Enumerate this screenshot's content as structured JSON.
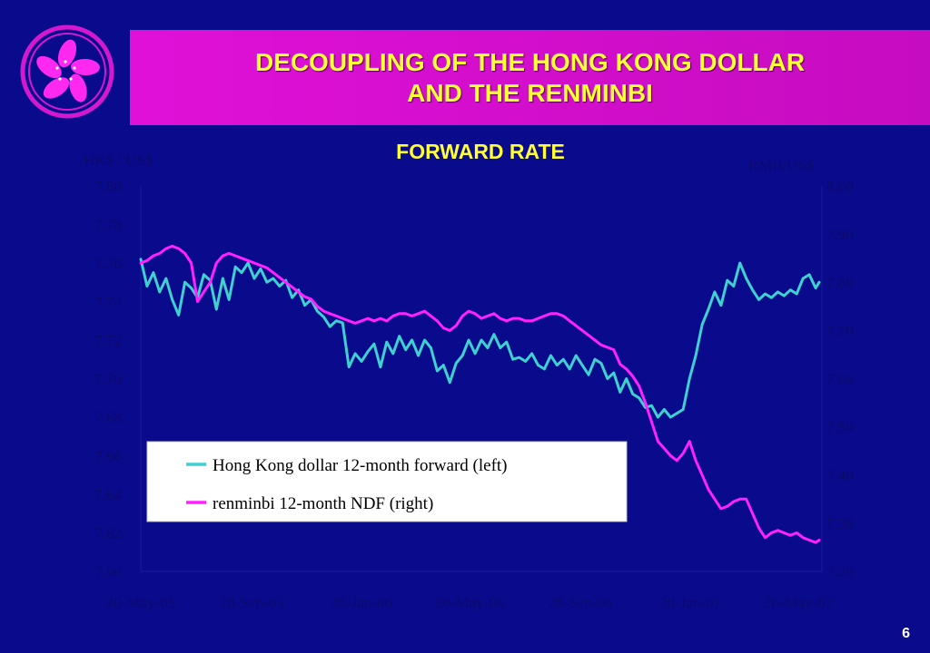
{
  "slide": {
    "title_line1": "DECOUPLING OF THE HONG KONG DOLLAR",
    "title_line2": "AND THE RENMINBI",
    "page_number": "6"
  },
  "colors": {
    "background": "#0a0a8c",
    "title_bar": "#d60ed0",
    "title_text": "#ffff33",
    "subtitle_text": "#ffff33",
    "hkd_series": "#3fd0d0",
    "rmb_series": "#ff22ff",
    "axis_text": "#0b0b6a",
    "grid_line": "#1a1aa0"
  },
  "chart_data": {
    "type": "line",
    "title": "FORWARD RATE",
    "ylabel_left": "HK$ / US$",
    "ylabel_right": "RMB/US$",
    "ylim_left": [
      7.6,
      7.8
    ],
    "ylim_right": [
      7.2,
      8.0
    ],
    "yticks_left": [
      "7.80",
      "7.78",
      "7.76",
      "7.74",
      "7.72",
      "7.70",
      "7.68",
      "7.66",
      "7.64",
      "7.62",
      "7.60"
    ],
    "yticks_right": [
      "8.00",
      "7.90",
      "7.80",
      "7.70",
      "7.60",
      "7.50",
      "7.40",
      "7.30",
      "7.20"
    ],
    "x_range": [
      "2005-05-20",
      "2007-06-15"
    ],
    "xticks": [
      {
        "date": "2005-05-20",
        "label": "20-May-05"
      },
      {
        "date": "2005-09-20",
        "label": "20-Sep-05"
      },
      {
        "date": "2006-01-20",
        "label": "20-Jan-06"
      },
      {
        "date": "2006-05-20",
        "label": "20-May-06"
      },
      {
        "date": "2006-09-20",
        "label": "20-Sep-06"
      },
      {
        "date": "2007-01-20",
        "label": "20-Jan-07"
      },
      {
        "date": "2007-05-20",
        "label": "20-May-07"
      }
    ],
    "legend_position": "bottom-left",
    "series": [
      {
        "name": "Hong Kong dollar 12-month forward (left)",
        "axis": "left",
        "color": "#3fd0d0",
        "points": [
          [
            "2005-05-20",
            7.762
          ],
          [
            "2005-05-27",
            7.748
          ],
          [
            "2005-06-03",
            7.755
          ],
          [
            "2005-06-10",
            7.745
          ],
          [
            "2005-06-17",
            7.752
          ],
          [
            "2005-06-24",
            7.741
          ],
          [
            "2005-07-01",
            7.733
          ],
          [
            "2005-07-08",
            7.75
          ],
          [
            "2005-07-15",
            7.747
          ],
          [
            "2005-07-22",
            7.742
          ],
          [
            "2005-07-29",
            7.754
          ],
          [
            "2005-08-05",
            7.751
          ],
          [
            "2005-08-12",
            7.736
          ],
          [
            "2005-08-19",
            7.752
          ],
          [
            "2005-08-26",
            7.741
          ],
          [
            "2005-09-02",
            7.758
          ],
          [
            "2005-09-09",
            7.755
          ],
          [
            "2005-09-16",
            7.76
          ],
          [
            "2005-09-23",
            7.752
          ],
          [
            "2005-09-30",
            7.757
          ],
          [
            "2005-10-07",
            7.75
          ],
          [
            "2005-10-14",
            7.752
          ],
          [
            "2005-10-21",
            7.748
          ],
          [
            "2005-10-28",
            7.751
          ],
          [
            "2005-11-04",
            7.742
          ],
          [
            "2005-11-11",
            7.746
          ],
          [
            "2005-11-18",
            7.738
          ],
          [
            "2005-11-25",
            7.741
          ],
          [
            "2005-12-02",
            7.735
          ],
          [
            "2005-12-09",
            7.732
          ],
          [
            "2005-12-16",
            7.727
          ],
          [
            "2005-12-23",
            7.73
          ],
          [
            "2005-12-30",
            7.729
          ],
          [
            "2006-01-06",
            7.706
          ],
          [
            "2006-01-13",
            7.713
          ],
          [
            "2006-01-20",
            7.709
          ],
          [
            "2006-01-27",
            7.714
          ],
          [
            "2006-02-03",
            7.718
          ],
          [
            "2006-02-10",
            7.706
          ],
          [
            "2006-02-17",
            7.719
          ],
          [
            "2006-02-24",
            7.713
          ],
          [
            "2006-03-03",
            7.722
          ],
          [
            "2006-03-10",
            7.715
          ],
          [
            "2006-03-17",
            7.72
          ],
          [
            "2006-03-24",
            7.712
          ],
          [
            "2006-03-31",
            7.72
          ],
          [
            "2006-04-07",
            7.716
          ],
          [
            "2006-04-14",
            7.704
          ],
          [
            "2006-04-21",
            7.707
          ],
          [
            "2006-04-28",
            7.698
          ],
          [
            "2006-05-05",
            7.708
          ],
          [
            "2006-05-12",
            7.712
          ],
          [
            "2006-05-19",
            7.72
          ],
          [
            "2006-05-26",
            7.713
          ],
          [
            "2006-06-02",
            7.72
          ],
          [
            "2006-06-09",
            7.716
          ],
          [
            "2006-06-16",
            7.723
          ],
          [
            "2006-06-23",
            7.716
          ],
          [
            "2006-06-30",
            7.719
          ],
          [
            "2006-07-07",
            7.71
          ],
          [
            "2006-07-14",
            7.711
          ],
          [
            "2006-07-21",
            7.709
          ],
          [
            "2006-07-28",
            7.713
          ],
          [
            "2006-08-04",
            7.707
          ],
          [
            "2006-08-11",
            7.705
          ],
          [
            "2006-08-18",
            7.712
          ],
          [
            "2006-08-25",
            7.707
          ],
          [
            "2006-09-01",
            7.71
          ],
          [
            "2006-09-08",
            7.705
          ],
          [
            "2006-09-15",
            7.712
          ],
          [
            "2006-09-22",
            7.707
          ],
          [
            "2006-09-29",
            7.702
          ],
          [
            "2006-10-06",
            7.71
          ],
          [
            "2006-10-13",
            7.708
          ],
          [
            "2006-10-20",
            7.7
          ],
          [
            "2006-10-27",
            7.703
          ],
          [
            "2006-11-03",
            7.693
          ],
          [
            "2006-11-10",
            7.7
          ],
          [
            "2006-11-17",
            7.692
          ],
          [
            "2006-11-24",
            7.69
          ],
          [
            "2006-12-01",
            7.685
          ],
          [
            "2006-12-08",
            7.686
          ],
          [
            "2006-12-15",
            7.68
          ],
          [
            "2006-12-22",
            7.684
          ],
          [
            "2006-12-29",
            7.68
          ],
          [
            "2007-01-05",
            7.682
          ],
          [
            "2007-01-12",
            7.684
          ],
          [
            "2007-01-19",
            7.7
          ],
          [
            "2007-01-26",
            7.712
          ],
          [
            "2007-02-02",
            7.728
          ],
          [
            "2007-02-09",
            7.736
          ],
          [
            "2007-02-16",
            7.745
          ],
          [
            "2007-02-23",
            7.738
          ],
          [
            "2007-03-02",
            7.751
          ],
          [
            "2007-03-09",
            7.748
          ],
          [
            "2007-03-16",
            7.76
          ],
          [
            "2007-03-23",
            7.752
          ],
          [
            "2007-03-30",
            7.746
          ],
          [
            "2007-04-06",
            7.741
          ],
          [
            "2007-04-13",
            7.744
          ],
          [
            "2007-04-20",
            7.742
          ],
          [
            "2007-04-27",
            7.745
          ],
          [
            "2007-05-04",
            7.743
          ],
          [
            "2007-05-11",
            7.746
          ],
          [
            "2007-05-18",
            7.744
          ],
          [
            "2007-05-25",
            7.752
          ],
          [
            "2007-06-01",
            7.754
          ],
          [
            "2007-06-08",
            7.747
          ],
          [
            "2007-06-12",
            7.75
          ]
        ]
      },
      {
        "name": "renminbi 12-month NDF (right)",
        "axis": "right",
        "color": "#ff22ff",
        "points": [
          [
            "2005-05-20",
            7.84
          ],
          [
            "2005-05-27",
            7.845
          ],
          [
            "2005-06-03",
            7.855
          ],
          [
            "2005-06-10",
            7.86
          ],
          [
            "2005-06-17",
            7.87
          ],
          [
            "2005-06-24",
            7.875
          ],
          [
            "2005-07-01",
            7.87
          ],
          [
            "2005-07-08",
            7.86
          ],
          [
            "2005-07-15",
            7.84
          ],
          [
            "2005-07-22",
            7.76
          ],
          [
            "2005-07-29",
            7.78
          ],
          [
            "2005-08-05",
            7.8
          ],
          [
            "2005-08-12",
            7.84
          ],
          [
            "2005-08-19",
            7.855
          ],
          [
            "2005-08-26",
            7.86
          ],
          [
            "2005-09-02",
            7.855
          ],
          [
            "2005-09-09",
            7.85
          ],
          [
            "2005-09-16",
            7.845
          ],
          [
            "2005-09-23",
            7.84
          ],
          [
            "2005-09-30",
            7.835
          ],
          [
            "2005-10-07",
            7.83
          ],
          [
            "2005-10-14",
            7.82
          ],
          [
            "2005-10-21",
            7.81
          ],
          [
            "2005-10-28",
            7.8
          ],
          [
            "2005-11-04",
            7.79
          ],
          [
            "2005-11-11",
            7.78
          ],
          [
            "2005-11-18",
            7.77
          ],
          [
            "2005-11-25",
            7.765
          ],
          [
            "2005-12-02",
            7.75
          ],
          [
            "2005-12-09",
            7.74
          ],
          [
            "2005-12-16",
            7.735
          ],
          [
            "2005-12-23",
            7.73
          ],
          [
            "2005-12-30",
            7.725
          ],
          [
            "2006-01-06",
            7.72
          ],
          [
            "2006-01-13",
            7.715
          ],
          [
            "2006-01-20",
            7.72
          ],
          [
            "2006-01-27",
            7.725
          ],
          [
            "2006-02-03",
            7.72
          ],
          [
            "2006-02-10",
            7.725
          ],
          [
            "2006-02-17",
            7.72
          ],
          [
            "2006-02-24",
            7.73
          ],
          [
            "2006-03-03",
            7.735
          ],
          [
            "2006-03-10",
            7.735
          ],
          [
            "2006-03-17",
            7.73
          ],
          [
            "2006-03-24",
            7.735
          ],
          [
            "2006-03-31",
            7.74
          ],
          [
            "2006-04-07",
            7.73
          ],
          [
            "2006-04-14",
            7.72
          ],
          [
            "2006-04-21",
            7.705
          ],
          [
            "2006-04-28",
            7.7
          ],
          [
            "2006-05-05",
            7.71
          ],
          [
            "2006-05-12",
            7.73
          ],
          [
            "2006-05-19",
            7.74
          ],
          [
            "2006-05-26",
            7.735
          ],
          [
            "2006-06-02",
            7.725
          ],
          [
            "2006-06-09",
            7.73
          ],
          [
            "2006-06-16",
            7.735
          ],
          [
            "2006-06-23",
            7.725
          ],
          [
            "2006-06-30",
            7.72
          ],
          [
            "2006-07-07",
            7.725
          ],
          [
            "2006-07-14",
            7.725
          ],
          [
            "2006-07-21",
            7.72
          ],
          [
            "2006-07-28",
            7.72
          ],
          [
            "2006-08-04",
            7.725
          ],
          [
            "2006-08-11",
            7.73
          ],
          [
            "2006-08-18",
            7.735
          ],
          [
            "2006-08-25",
            7.735
          ],
          [
            "2006-09-01",
            7.73
          ],
          [
            "2006-09-08",
            7.72
          ],
          [
            "2006-09-15",
            7.71
          ],
          [
            "2006-09-22",
            7.7
          ],
          [
            "2006-09-29",
            7.69
          ],
          [
            "2006-10-06",
            7.68
          ],
          [
            "2006-10-13",
            7.67
          ],
          [
            "2006-10-20",
            7.665
          ],
          [
            "2006-10-27",
            7.66
          ],
          [
            "2006-11-03",
            7.63
          ],
          [
            "2006-11-10",
            7.62
          ],
          [
            "2006-11-17",
            7.605
          ],
          [
            "2006-11-24",
            7.585
          ],
          [
            "2006-12-01",
            7.55
          ],
          [
            "2006-12-08",
            7.51
          ],
          [
            "2006-12-15",
            7.47
          ],
          [
            "2006-12-22",
            7.455
          ],
          [
            "2006-12-29",
            7.44
          ],
          [
            "2007-01-05",
            7.43
          ],
          [
            "2007-01-12",
            7.445
          ],
          [
            "2007-01-19",
            7.47
          ],
          [
            "2007-01-26",
            7.43
          ],
          [
            "2007-02-02",
            7.4
          ],
          [
            "2007-02-09",
            7.37
          ],
          [
            "2007-02-16",
            7.35
          ],
          [
            "2007-02-23",
            7.33
          ],
          [
            "2007-03-02",
            7.335
          ],
          [
            "2007-03-09",
            7.345
          ],
          [
            "2007-03-16",
            7.35
          ],
          [
            "2007-03-23",
            7.35
          ],
          [
            "2007-03-30",
            7.32
          ],
          [
            "2007-04-06",
            7.29
          ],
          [
            "2007-04-13",
            7.27
          ],
          [
            "2007-04-20",
            7.28
          ],
          [
            "2007-04-27",
            7.285
          ],
          [
            "2007-05-04",
            7.28
          ],
          [
            "2007-05-11",
            7.275
          ],
          [
            "2007-05-18",
            7.28
          ],
          [
            "2007-05-25",
            7.27
          ],
          [
            "2007-06-01",
            7.265
          ],
          [
            "2007-06-08",
            7.26
          ],
          [
            "2007-06-12",
            7.265
          ]
        ]
      }
    ]
  }
}
